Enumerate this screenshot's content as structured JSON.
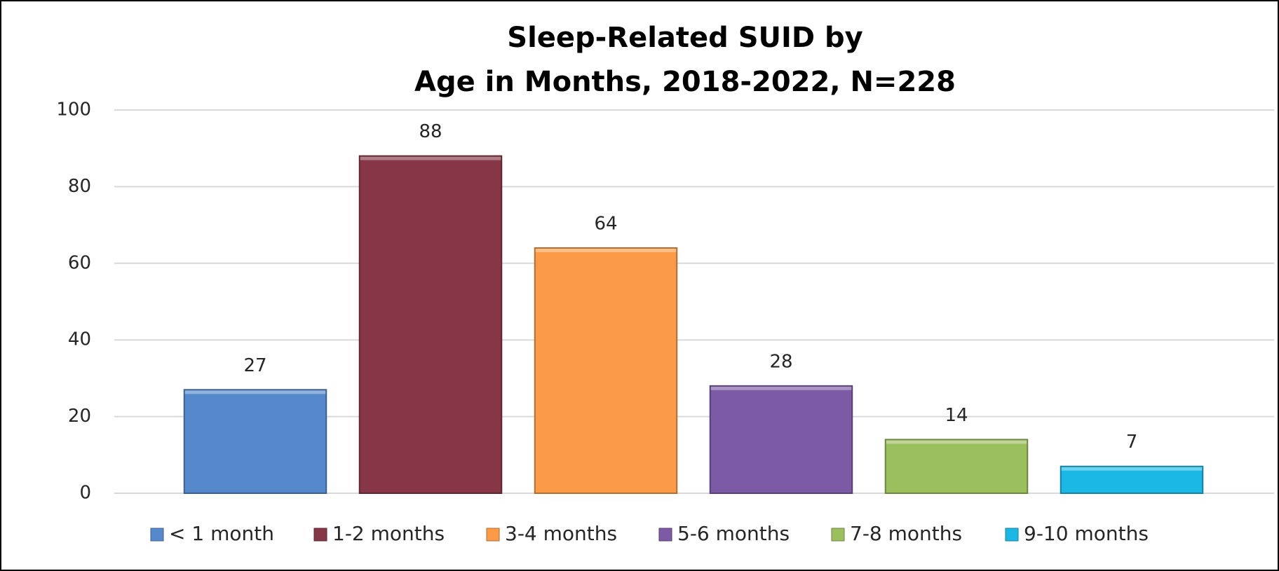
{
  "chart_data": {
    "type": "bar",
    "title": [
      "Sleep-Related SUID by",
      "Age in Months, 2018-2022, N=228"
    ],
    "categories": [
      "< 1 month",
      "1-2 months",
      "3-4 months",
      "5-6 months",
      "7-8 months",
      "9-10 months"
    ],
    "values": [
      27,
      88,
      64,
      28,
      14,
      7
    ],
    "colors": [
      "#5689cc",
      "#863646",
      "#fb9b48",
      "#7d5aa6",
      "#9cbf5e",
      "#1bb8e6"
    ],
    "ylim": [
      0,
      100
    ],
    "yticks": [
      0,
      20,
      40,
      60,
      80,
      100
    ],
    "grid": true,
    "legend": "bottom"
  }
}
